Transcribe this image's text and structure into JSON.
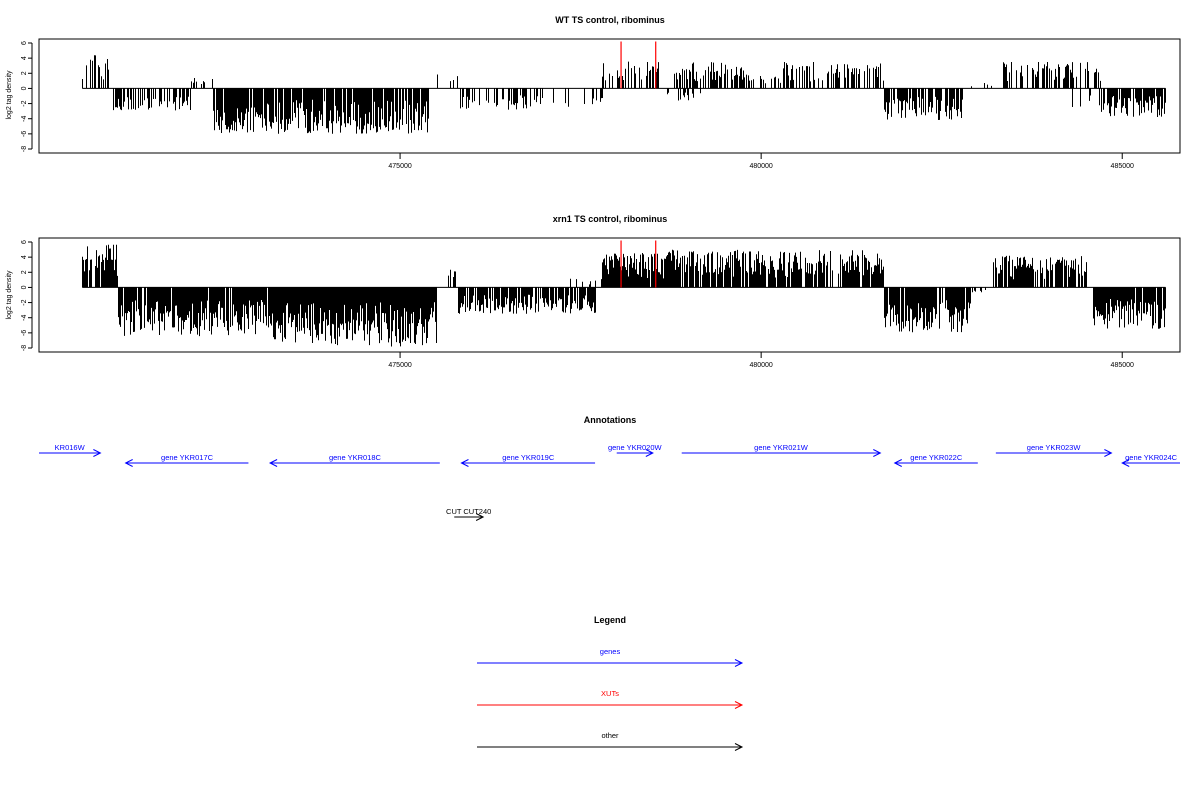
{
  "chart_data": [
    {
      "type": "bar",
      "title": "WT TS control, ribominus",
      "xlabel": "",
      "ylabel": "log2 tag density",
      "xlim": [
        470000,
        485800
      ],
      "ylim": [
        -8,
        6
      ],
      "yticks": [
        6,
        4,
        2,
        0,
        -2,
        -4,
        -6,
        -8
      ],
      "xticks": [
        475000,
        480000,
        485000
      ],
      "grid": false,
      "baseline": {
        "x_start": 470600,
        "x_end": 485600,
        "y": 0
      },
      "signal_segments": [
        {
          "from": 470600,
          "to": 471000,
          "sign": 1,
          "max": 4.5,
          "density": 0.45
        },
        {
          "from": 471000,
          "to": 472100,
          "sign": -1,
          "max": 3.0,
          "density": 0.6
        },
        {
          "from": 472100,
          "to": 472400,
          "sign": 1,
          "max": 1.6,
          "density": 0.15
        },
        {
          "from": 472400,
          "to": 475400,
          "sign": -1,
          "max": 6.0,
          "density": 0.85
        },
        {
          "from": 475400,
          "to": 475800,
          "sign": 1,
          "max": 2.2,
          "density": 0.2
        },
        {
          "from": 475800,
          "to": 477000,
          "sign": -1,
          "max": 2.8,
          "density": 0.4
        },
        {
          "from": 477000,
          "to": 477800,
          "sign": -1,
          "max": 2.5,
          "density": 0.25
        },
        {
          "from": 477800,
          "to": 478600,
          "sign": 1,
          "max": 3.6,
          "density": 0.45
        },
        {
          "from": 478600,
          "to": 479200,
          "sign": -1,
          "max": 1.7,
          "density": 0.2
        },
        {
          "from": 478800,
          "to": 479800,
          "sign": 1,
          "max": 3.5,
          "density": 0.6
        },
        {
          "from": 479800,
          "to": 480300,
          "sign": 1,
          "max": 1.8,
          "density": 0.3
        },
        {
          "from": 480300,
          "to": 481700,
          "sign": 1,
          "max": 3.5,
          "density": 0.55
        },
        {
          "from": 481700,
          "to": 482800,
          "sign": -1,
          "max": 4.2,
          "density": 0.7
        },
        {
          "from": 482800,
          "to": 483300,
          "sign": 1,
          "max": 0.8,
          "density": 0.15
        },
        {
          "from": 483300,
          "to": 484700,
          "sign": 1,
          "max": 3.5,
          "density": 0.5
        },
        {
          "from": 484300,
          "to": 484700,
          "sign": -1,
          "max": 2.5,
          "density": 0.2
        },
        {
          "from": 484700,
          "to": 485600,
          "sign": -1,
          "max": 3.8,
          "density": 0.75
        }
      ],
      "xut_markers": [
        {
          "x": 478060,
          "y_from": 0,
          "y_to": 6.2
        },
        {
          "x": 478540,
          "y_from": 0,
          "y_to": 6.2
        }
      ],
      "colors": {
        "bars": "#000000",
        "markers": "#ff0000",
        "axis": "#000000"
      }
    },
    {
      "type": "bar",
      "title": "xrn1 TS control, ribominus",
      "xlabel": "",
      "ylabel": "log2 tag density",
      "xlim": [
        470000,
        485800
      ],
      "ylim": [
        -8,
        6
      ],
      "yticks": [
        6,
        4,
        2,
        0,
        -2,
        -4,
        -6,
        -8
      ],
      "xticks": [
        475000,
        480000,
        485000
      ],
      "grid": false,
      "baseline": {
        "x_start": 470600,
        "x_end": 485600,
        "y": 0
      },
      "signal_segments": [
        {
          "from": 470600,
          "to": 471100,
          "sign": 1,
          "max": 6.0,
          "density": 0.95
        },
        {
          "from": 471100,
          "to": 473200,
          "sign": -1,
          "max": 6.5,
          "density": 0.95
        },
        {
          "from": 473200,
          "to": 475500,
          "sign": -1,
          "max": 7.8,
          "density": 1.0
        },
        {
          "from": 475600,
          "to": 475800,
          "sign": 1,
          "max": 3.2,
          "density": 0.3
        },
        {
          "from": 475800,
          "to": 477700,
          "sign": -1,
          "max": 3.5,
          "density": 0.8
        },
        {
          "from": 477300,
          "to": 477800,
          "sign": 1,
          "max": 1.2,
          "density": 0.2
        },
        {
          "from": 477800,
          "to": 478700,
          "sign": 1,
          "max": 4.6,
          "density": 0.95
        },
        {
          "from": 478700,
          "to": 481700,
          "sign": 1,
          "max": 5.0,
          "density": 0.9
        },
        {
          "from": 481700,
          "to": 482900,
          "sign": -1,
          "max": 6.0,
          "density": 0.9
        },
        {
          "from": 482900,
          "to": 483200,
          "sign": -1,
          "max": 0.8,
          "density": 0.2
        },
        {
          "from": 483200,
          "to": 484500,
          "sign": 1,
          "max": 4.2,
          "density": 0.8
        },
        {
          "from": 484600,
          "to": 485600,
          "sign": -1,
          "max": 5.5,
          "density": 0.95
        }
      ],
      "xut_markers": [
        {
          "x": 478060,
          "y_from": 0,
          "y_to": 6.2
        },
        {
          "x": 478540,
          "y_from": 0,
          "y_to": 6.2
        }
      ],
      "colors": {
        "bars": "#000000",
        "markers": "#ff0000",
        "axis": "#000000"
      }
    }
  ],
  "annotations": {
    "title": "Annotations",
    "xlim": [
      470000,
      485800
    ],
    "features": [
      {
        "label": "KR016W",
        "from": 470000,
        "to": 470850,
        "strand": "+",
        "row": 0,
        "color": "#0000ff"
      },
      {
        "label": "gene YKR017C",
        "from": 471200,
        "to": 472900,
        "strand": "-",
        "row": 1,
        "color": "#0000ff"
      },
      {
        "label": "gene YKR018C",
        "from": 473200,
        "to": 475550,
        "strand": "-",
        "row": 1,
        "color": "#0000ff"
      },
      {
        "label": "gene YKR019C",
        "from": 475850,
        "to": 477700,
        "strand": "-",
        "row": 1,
        "color": "#0000ff"
      },
      {
        "label": "gene YKR020W",
        "from": 478000,
        "to": 478500,
        "strand": "+",
        "row": 0,
        "color": "#0000ff"
      },
      {
        "label": "gene YKR021W",
        "from": 478900,
        "to": 481650,
        "strand": "+",
        "row": 0,
        "color": "#0000ff"
      },
      {
        "label": "gene YKR022C",
        "from": 481850,
        "to": 483000,
        "strand": "-",
        "row": 1,
        "color": "#0000ff"
      },
      {
        "label": "gene YKR023W",
        "from": 483250,
        "to": 484850,
        "strand": "+",
        "row": 0,
        "color": "#0000ff"
      },
      {
        "label": "gene YKR024C",
        "from": 485000,
        "to": 485800,
        "strand": "-",
        "row": 1,
        "color": "#0000ff"
      },
      {
        "label": "CUT CUT240",
        "from": 475750,
        "to": 476150,
        "strand": "+",
        "row": 2,
        "color": "#000000"
      }
    ]
  },
  "legend": {
    "title": "Legend",
    "entries": [
      {
        "label": "genes",
        "color": "#0000ff"
      },
      {
        "label": "XUTs",
        "color": "#ff0000"
      },
      {
        "label": "other",
        "color": "#000000"
      }
    ]
  }
}
